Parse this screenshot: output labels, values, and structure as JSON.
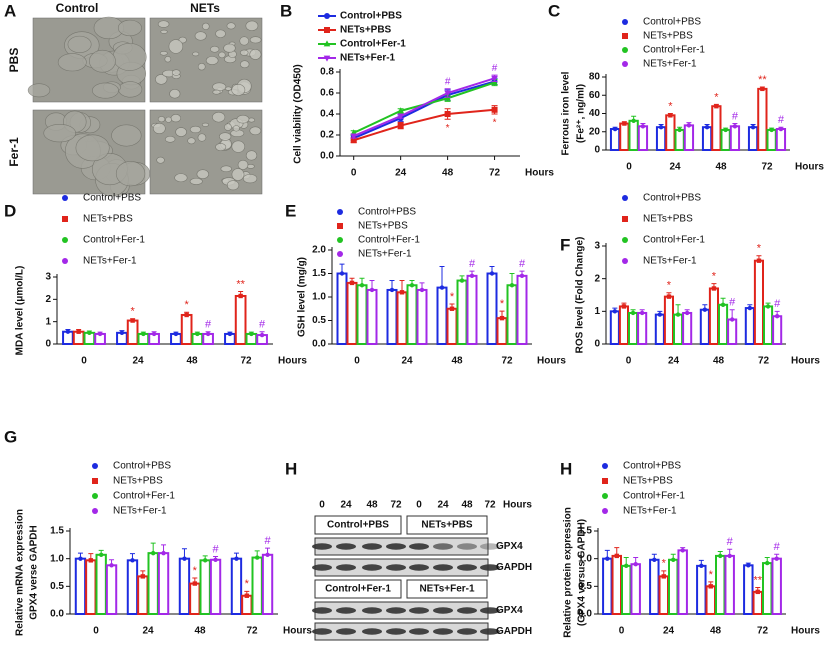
{
  "panel_a": {
    "panel": "A",
    "column_labels": [
      "Control",
      "NETs"
    ],
    "row_labels": [
      "PBS",
      "Fer-1"
    ]
  },
  "panel_h_blot": {
    "panel": "H",
    "time_labels": [
      "0",
      "24",
      "48",
      "72",
      "0",
      "24",
      "48",
      "72"
    ],
    "time_unit": "Hours",
    "groups": [
      {
        "left": "Control+PBS",
        "right": "NETs+PBS",
        "rows": [
          "GPX4",
          "GAPDH"
        ]
      },
      {
        "left": "Control+Fer-1",
        "right": "NETs+Fer-1",
        "rows": [
          "GPX4",
          "GAPDH"
        ]
      }
    ]
  },
  "chart_data": [
    {
      "type": "line",
      "panel": "B",
      "ylabel": "Cell viability (OD450)",
      "xlabel": "Hours",
      "x": [
        0,
        24,
        48,
        72
      ],
      "xlim": [
        -7,
        85
      ],
      "xticks": [
        0,
        24,
        48,
        72
      ],
      "ylim": [
        0,
        0.8
      ],
      "yticks": [
        {
          "value": 0,
          "label": "0.0"
        },
        0.2,
        0.4,
        0.6,
        0.8
      ],
      "series": [
        {
          "name": "Control+PBS",
          "color": "#1d2be0",
          "marker": "circle",
          "values": [
            0.17,
            0.36,
            0.58,
            0.71
          ],
          "errors": [
            0.02,
            0.03,
            0.05,
            0.03
          ]
        },
        {
          "name": "NETs+PBS",
          "color": "#e0241b",
          "marker": "square",
          "values": [
            0.15,
            0.29,
            0.4,
            0.44
          ],
          "errors": [
            0.02,
            0.03,
            0.05,
            0.04
          ],
          "significance": [
            null,
            null,
            "*",
            "*"
          ]
        },
        {
          "name": "Control+Fer-1",
          "color": "#22c322",
          "marker": "triangle",
          "values": [
            0.22,
            0.43,
            0.55,
            0.7
          ],
          "errors": [
            0.02,
            0.02,
            0.03,
            0.03
          ]
        },
        {
          "name": "NETs+Fer-1",
          "color": "#a328e8",
          "marker": "triangle-down",
          "values": [
            0.19,
            0.38,
            0.6,
            0.74
          ],
          "errors": [
            0.02,
            0.02,
            0.04,
            0.03
          ],
          "significance": [
            null,
            null,
            "#",
            "#"
          ]
        }
      ]
    },
    {
      "type": "bar",
      "panel": "C",
      "ylabel": [
        "Ferrous iron level",
        "(Fe²⁺, ng/ml)"
      ],
      "xlabel": "Hours",
      "categories": [
        "0",
        "24",
        "48",
        "72"
      ],
      "ylim": [
        0,
        80
      ],
      "yticks": [
        0,
        20,
        40,
        60,
        80
      ],
      "series": [
        {
          "name": "Control+PBS",
          "color": "#1d2be0",
          "marker": "circle",
          "values": [
            23,
            25,
            25,
            25
          ],
          "errors": [
            2,
            3,
            3,
            3
          ]
        },
        {
          "name": "NETs+PBS",
          "color": "#e0241b",
          "marker": "square",
          "values": [
            29,
            38,
            48,
            67
          ],
          "errors": [
            2,
            2,
            2,
            2
          ],
          "significance": [
            null,
            "*",
            "*",
            "**"
          ]
        },
        {
          "name": "Control+Fer-1",
          "color": "#22c322",
          "marker": "circle",
          "values": [
            32,
            22,
            22,
            22
          ],
          "errors": [
            5,
            3,
            2,
            2
          ]
        },
        {
          "name": "NETs+Fer-1",
          "color": "#a328e8",
          "marker": "circle",
          "values": [
            26,
            27,
            26,
            23
          ],
          "errors": [
            3,
            3,
            3,
            2
          ],
          "significance": [
            null,
            null,
            "#",
            "#"
          ]
        }
      ]
    },
    {
      "type": "bar",
      "panel": "D",
      "ylabel": "MDA level (μmol/L)",
      "xlabel": "Hours",
      "categories": [
        "0",
        "24",
        "48",
        "72"
      ],
      "ylim": [
        0,
        3
      ],
      "yticks": [
        0,
        1,
        2,
        3
      ],
      "series": [
        {
          "name": "Control+PBS",
          "color": "#1d2be0",
          "marker": "circle",
          "values": [
            0.55,
            0.5,
            0.45,
            0.45
          ],
          "errors": [
            0.1,
            0.1,
            0.08,
            0.08
          ]
        },
        {
          "name": "NETs+PBS",
          "color": "#e0241b",
          "marker": "square",
          "values": [
            0.55,
            1.05,
            1.3,
            2.15
          ],
          "errors": [
            0.1,
            0.08,
            0.12,
            0.2
          ],
          "significance": [
            null,
            "*",
            "*",
            "**"
          ]
        },
        {
          "name": "Control+Fer-1",
          "color": "#22c322",
          "marker": "circle",
          "values": [
            0.5,
            0.45,
            0.45,
            0.45
          ],
          "errors": [
            0.08,
            0.08,
            0.08,
            0.08
          ]
        },
        {
          "name": "NETs+Fer-1",
          "color": "#a328e8",
          "marker": "circle",
          "values": [
            0.45,
            0.45,
            0.45,
            0.4
          ],
          "errors": [
            0.08,
            0.1,
            0.1,
            0.15
          ],
          "significance": [
            null,
            null,
            "#",
            "#"
          ]
        }
      ]
    },
    {
      "type": "bar",
      "panel": "E",
      "ylabel": "GSH level (mg/g)",
      "xlabel": "Hours",
      "categories": [
        "0",
        "24",
        "48",
        "72"
      ],
      "ylim": [
        0,
        2.0
      ],
      "yticks": [
        {
          "value": 0,
          "label": "0.0"
        },
        0.5,
        {
          "value": 1,
          "label": "1.0"
        },
        1.5,
        {
          "value": 2,
          "label": "2.0"
        }
      ],
      "series": [
        {
          "name": "Control+PBS",
          "color": "#1d2be0",
          "marker": "circle",
          "values": [
            1.5,
            1.15,
            1.2,
            1.5
          ],
          "errors": [
            0.2,
            0.2,
            0.45,
            0.15
          ]
        },
        {
          "name": "NETs+PBS",
          "color": "#e0241b",
          "marker": "square",
          "values": [
            1.3,
            1.1,
            0.75,
            0.55
          ],
          "errors": [
            0.1,
            0.25,
            0.1,
            0.15
          ],
          "significance": [
            null,
            null,
            "*",
            "*"
          ]
        },
        {
          "name": "Control+Fer-1",
          "color": "#22c322",
          "marker": "circle",
          "values": [
            1.25,
            1.25,
            1.35,
            1.25
          ],
          "errors": [
            0.15,
            0.1,
            0.1,
            0.25
          ]
        },
        {
          "name": "NETs+Fer-1",
          "color": "#a328e8",
          "marker": "circle",
          "values": [
            1.15,
            1.15,
            1.45,
            1.45
          ],
          "errors": [
            0.2,
            0.15,
            0.1,
            0.1
          ],
          "significance": [
            null,
            null,
            "#",
            "#"
          ]
        }
      ]
    },
    {
      "type": "bar",
      "panel": "F",
      "ylabel": "ROS level (Fold Change)",
      "xlabel": "Hours",
      "categories": [
        "0",
        "24",
        "48",
        "72"
      ],
      "ylim": [
        0,
        3
      ],
      "yticks": [
        0,
        1,
        2,
        3
      ],
      "series": [
        {
          "name": "Control+PBS",
          "color": "#1d2be0",
          "marker": "circle",
          "values": [
            1.0,
            0.9,
            1.05,
            1.1
          ],
          "errors": [
            0.1,
            0.1,
            0.15,
            0.1
          ]
        },
        {
          "name": "NETs+PBS",
          "color": "#e0241b",
          "marker": "square",
          "values": [
            1.15,
            1.45,
            1.7,
            2.55
          ],
          "errors": [
            0.1,
            0.12,
            0.15,
            0.15
          ],
          "significance": [
            null,
            "*",
            "*",
            "*"
          ]
        },
        {
          "name": "Control+Fer-1",
          "color": "#22c322",
          "marker": "circle",
          "values": [
            0.95,
            0.9,
            1.2,
            1.15
          ],
          "errors": [
            0.1,
            0.3,
            0.2,
            0.1
          ]
        },
        {
          "name": "NETs+Fer-1",
          "color": "#a328e8",
          "marker": "circle",
          "values": [
            0.95,
            0.95,
            0.75,
            0.85
          ],
          "errors": [
            0.1,
            0.1,
            0.3,
            0.15
          ],
          "significance": [
            null,
            null,
            "#",
            "#"
          ]
        }
      ]
    },
    {
      "type": "bar",
      "panel": "G",
      "ylabel": [
        "Relative mRNA expression",
        "GPX4 verse GAPDH"
      ],
      "xlabel": "Hours",
      "categories": [
        "0",
        "24",
        "48",
        "72"
      ],
      "ylim": [
        0,
        1.5
      ],
      "yticks": [
        {
          "value": 0,
          "label": "0.0"
        },
        0.5,
        {
          "value": 1,
          "label": "1.0"
        },
        1.5
      ],
      "series": [
        {
          "name": "Control+PBS",
          "color": "#1d2be0",
          "marker": "circle",
          "values": [
            1.0,
            0.97,
            1.0,
            1.0
          ],
          "errors": [
            0.1,
            0.12,
            0.18,
            0.1
          ]
        },
        {
          "name": "NETs+PBS",
          "color": "#e0241b",
          "marker": "square",
          "values": [
            0.97,
            0.68,
            0.55,
            0.33
          ],
          "errors": [
            0.12,
            0.1,
            0.1,
            0.08
          ],
          "significance": [
            null,
            null,
            "*",
            "*"
          ]
        },
        {
          "name": "Control+Fer-1",
          "color": "#22c322",
          "marker": "circle",
          "values": [
            1.07,
            1.1,
            0.97,
            1.02
          ],
          "errors": [
            0.08,
            0.18,
            0.08,
            0.12
          ]
        },
        {
          "name": "NETs+Fer-1",
          "color": "#a328e8",
          "marker": "circle",
          "values": [
            0.88,
            1.1,
            0.98,
            1.07
          ],
          "errors": [
            0.1,
            0.15,
            0.06,
            0.12
          ],
          "significance": [
            null,
            null,
            "#",
            "#"
          ]
        }
      ]
    },
    {
      "type": "bar",
      "panel": "H",
      "ylabel": [
        "Relative protein expression",
        "(GPX4 versus GAPDH)"
      ],
      "xlabel": "Hours",
      "categories": [
        "0",
        "24",
        "48",
        "72"
      ],
      "ylim": [
        0,
        1.5
      ],
      "yticks": [
        {
          "value": 0,
          "label": "0.0"
        },
        0.5,
        {
          "value": 1,
          "label": "1.0"
        },
        1.5
      ],
      "series": [
        {
          "name": "Control+PBS",
          "color": "#1d2be0",
          "marker": "circle",
          "values": [
            1.0,
            0.98,
            0.87,
            0.88
          ],
          "errors": [
            0.15,
            0.1,
            0.1,
            0.04
          ]
        },
        {
          "name": "NETs+PBS",
          "color": "#e0241b",
          "marker": "square",
          "values": [
            1.05,
            0.68,
            0.5,
            0.4
          ],
          "errors": [
            0.15,
            0.1,
            0.08,
            0.08
          ],
          "significance": [
            null,
            "*",
            "*",
            "**"
          ]
        },
        {
          "name": "Control+Fer-1",
          "color": "#22c322",
          "marker": "circle",
          "values": [
            0.87,
            0.98,
            1.05,
            0.92
          ],
          "errors": [
            0.15,
            0.1,
            0.08,
            0.1
          ]
        },
        {
          "name": "NETs+Fer-1",
          "color": "#a328e8",
          "marker": "circle",
          "values": [
            0.9,
            1.15,
            1.05,
            1.0
          ],
          "errors": [
            0.12,
            0.05,
            0.12,
            0.08
          ],
          "significance": [
            null,
            null,
            "#",
            "#"
          ]
        }
      ]
    }
  ]
}
